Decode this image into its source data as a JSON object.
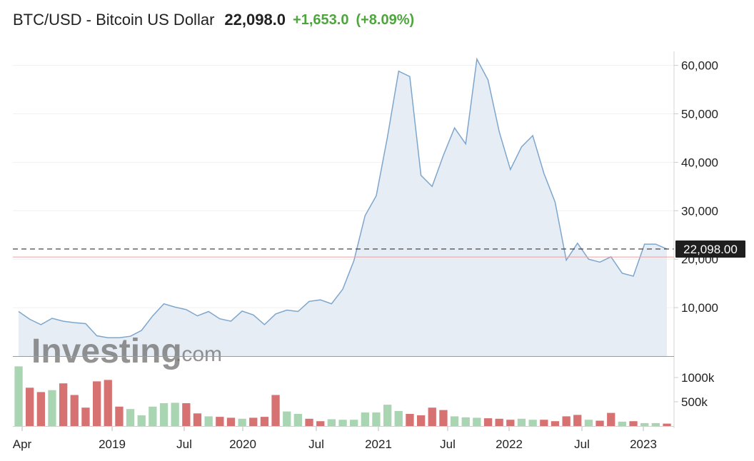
{
  "header": {
    "title": "BTC/USD - Bitcoin US Dollar",
    "price": "22,098.0",
    "change": "+1,653.0",
    "change_pct": "(+8.09%)",
    "up_color": "#4ca63c",
    "direction_icon": "up-arrow-icon"
  },
  "watermark": {
    "brand": "Investing",
    "suffix": ".com"
  },
  "chart_data": {
    "type": "area",
    "price_axis": {
      "ylim": [
        0,
        62000
      ],
      "ticks": [
        10000,
        20000,
        30000,
        40000,
        50000,
        60000
      ],
      "tick_labels": [
        "10,000",
        "20,000",
        "30,000",
        "40,000",
        "50,000",
        "60,000"
      ]
    },
    "x_tick_labels": [
      "Apr",
      "2019",
      "Jul",
      "2020",
      "Jul",
      "2021",
      "Jul",
      "2022",
      "Jul",
      "2023"
    ],
    "current_price_label": "22,098.00",
    "current_price": 22098,
    "reference_price": 20445,
    "series": [
      {
        "values": [
          9200,
          7600,
          6500,
          7800,
          7200,
          6900,
          6700,
          4200,
          3800,
          3800,
          4100,
          5300,
          8300,
          10800,
          10100,
          9600,
          8300,
          9200,
          7700,
          7200,
          9300,
          8500,
          6500,
          8700,
          9500,
          9200,
          11300,
          11600,
          10800,
          13800,
          19700,
          29000,
          33100,
          45200,
          58800,
          57700,
          37300,
          35000,
          41400,
          47100,
          43800,
          61300,
          57000,
          46300,
          38500,
          43200,
          45500,
          37700,
          31800,
          19800,
          23300,
          20000,
          19400,
          20500,
          17100,
          16500,
          23100,
          23100,
          22098
        ]
      }
    ],
    "volume": {
      "ylim": [
        0,
        1250000
      ],
      "ticks": [
        500000,
        1000000
      ],
      "tick_labels": [
        "500k",
        "1000k"
      ],
      "up_color": "#a9d5b3",
      "down_color": "#d77272",
      "values": [
        1230000,
        790000,
        700000,
        740000,
        880000,
        640000,
        380000,
        920000,
        950000,
        400000,
        350000,
        220000,
        400000,
        470000,
        480000,
        470000,
        260000,
        200000,
        190000,
        170000,
        150000,
        170000,
        190000,
        640000,
        300000,
        250000,
        150000,
        100000,
        140000,
        130000,
        130000,
        280000,
        280000,
        440000,
        310000,
        250000,
        220000,
        380000,
        330000,
        200000,
        180000,
        170000,
        160000,
        150000,
        130000,
        150000,
        130000,
        130000,
        100000,
        200000,
        230000,
        130000,
        110000,
        270000,
        90000,
        100000,
        60000,
        60000,
        50000
      ],
      "up": [
        true,
        false,
        false,
        true,
        false,
        false,
        false,
        false,
        false,
        false,
        true,
        true,
        true,
        true,
        true,
        false,
        false,
        true,
        false,
        false,
        true,
        false,
        false,
        false,
        true,
        true,
        false,
        false,
        true,
        true,
        true,
        true,
        true,
        true,
        true,
        false,
        false,
        false,
        false,
        true,
        true,
        true,
        false,
        false,
        false,
        true,
        true,
        false,
        false,
        false,
        false,
        true,
        false,
        false,
        true,
        false,
        true,
        true,
        false
      ]
    }
  }
}
